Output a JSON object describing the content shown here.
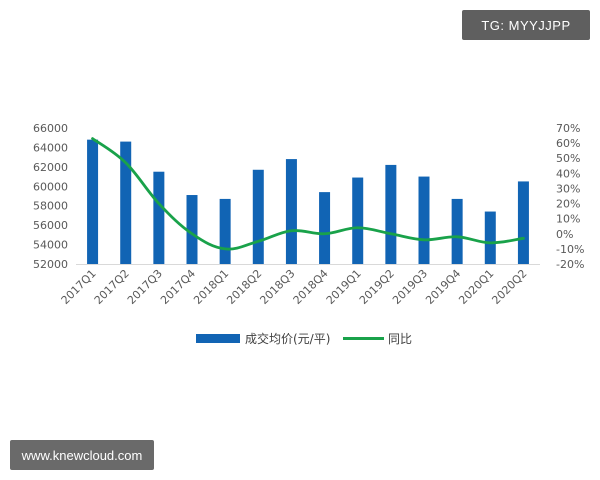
{
  "watermarks": {
    "top_right": "TG: MYYJJPP",
    "bottom_left": "www.knewcloud.com"
  },
  "colors": {
    "bar": "#1164B4",
    "line": "#19A24A",
    "axis_text": "#595959"
  },
  "chart_data": {
    "type": "bar",
    "categories": [
      "2017Q1",
      "2017Q2",
      "2017Q3",
      "2017Q4",
      "2018Q1",
      "2018Q2",
      "2018Q3",
      "2018Q4",
      "2019Q1",
      "2019Q2",
      "2019Q3",
      "2019Q4",
      "2020Q1",
      "2020Q2"
    ],
    "series": [
      {
        "name": "成交均价(元/平)",
        "type": "bar",
        "axis": "left",
        "values": [
          64800,
          64600,
          61500,
          59100,
          58700,
          61700,
          62800,
          59400,
          60900,
          62200,
          61000,
          58700,
          57400,
          60500
        ]
      },
      {
        "name": "同比",
        "type": "line",
        "axis": "right",
        "values": [
          63,
          47,
          20,
          0,
          -10,
          -5,
          2,
          0,
          4,
          0,
          -4,
          -2,
          -6,
          -3
        ]
      }
    ],
    "y_left": {
      "ylim": [
        52000,
        66000
      ],
      "ticks": [
        "52000",
        "54000",
        "56000",
        "58000",
        "60000",
        "62000",
        "64000",
        "66000"
      ]
    },
    "y_right": {
      "ylim": [
        -20,
        70
      ],
      "ticks": [
        "-20%",
        "-10%",
        "0%",
        "10%",
        "20%",
        "30%",
        "40%",
        "50%",
        "60%",
        "70%"
      ]
    },
    "legend": "bottom",
    "grid": false,
    "title": "",
    "xlabel": "",
    "ylabel": ""
  }
}
